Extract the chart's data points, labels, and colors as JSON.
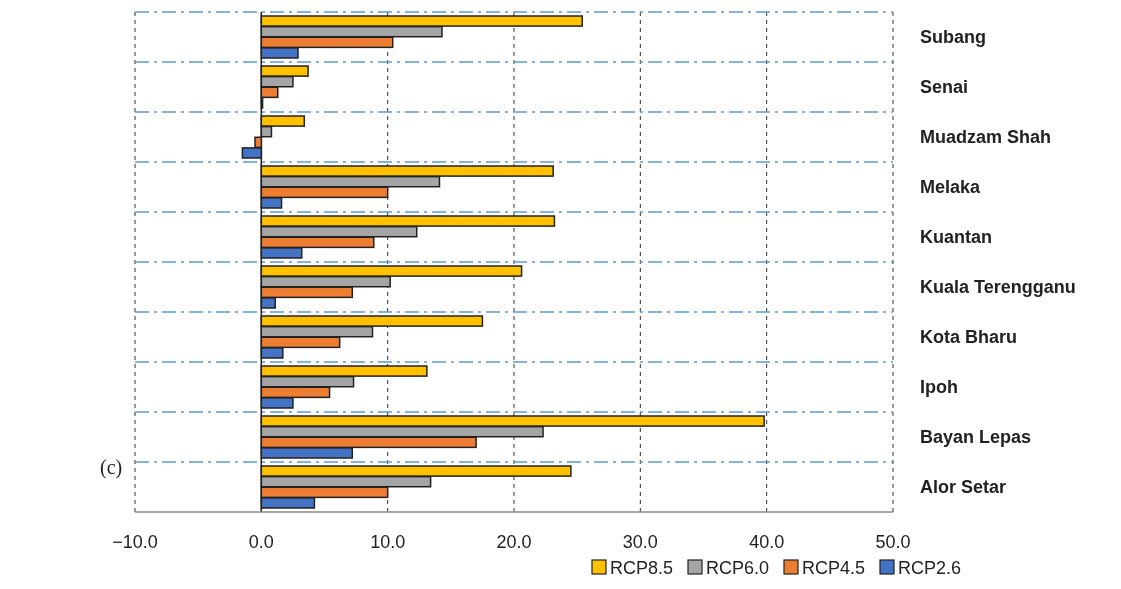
{
  "chart_data": {
    "type": "bar",
    "orientation": "horizontal",
    "categories": [
      "Subang",
      "Senai",
      "Muadzam Shah",
      "Melaka",
      "Kuantan",
      "Kuala Terengganu",
      "Kota Bharu",
      "Ipoh",
      "Bayan Lepas",
      "Alor Setar"
    ],
    "series": [
      {
        "name": "RCP8.5",
        "color": "#ffc000",
        "values": [
          25.4,
          3.7,
          3.4,
          23.1,
          23.2,
          20.6,
          17.5,
          13.1,
          39.8,
          24.5
        ]
      },
      {
        "name": "RCP6.0",
        "color": "#a5a5a5",
        "values": [
          14.3,
          2.5,
          0.8,
          14.1,
          12.3,
          10.2,
          8.8,
          7.3,
          22.3,
          13.4
        ]
      },
      {
        "name": "RCP4.5",
        "color": "#ed7d31",
        "values": [
          10.4,
          1.3,
          -0.5,
          10.0,
          8.9,
          7.2,
          6.2,
          5.4,
          17.0,
          10.0
        ]
      },
      {
        "name": "RCP2.6",
        "color": "#4472c4",
        "values": [
          2.9,
          0.1,
          -1.5,
          1.6,
          3.2,
          1.1,
          1.7,
          2.5,
          7.2,
          4.2
        ]
      }
    ],
    "xlim": [
      -10,
      50
    ],
    "xticks": [
      {
        "value": -10,
        "label": "−10.0"
      },
      {
        "value": 0,
        "label": "0.0"
      },
      {
        "value": 10,
        "label": "10.0"
      },
      {
        "value": 20,
        "label": "20.0"
      },
      {
        "value": 30,
        "label": "30.0"
      },
      {
        "value": 40,
        "label": "40.0"
      },
      {
        "value": 50,
        "label": "50.0"
      }
    ],
    "grid": true,
    "legend": "bottom",
    "annotations": [
      "(c)"
    ]
  }
}
